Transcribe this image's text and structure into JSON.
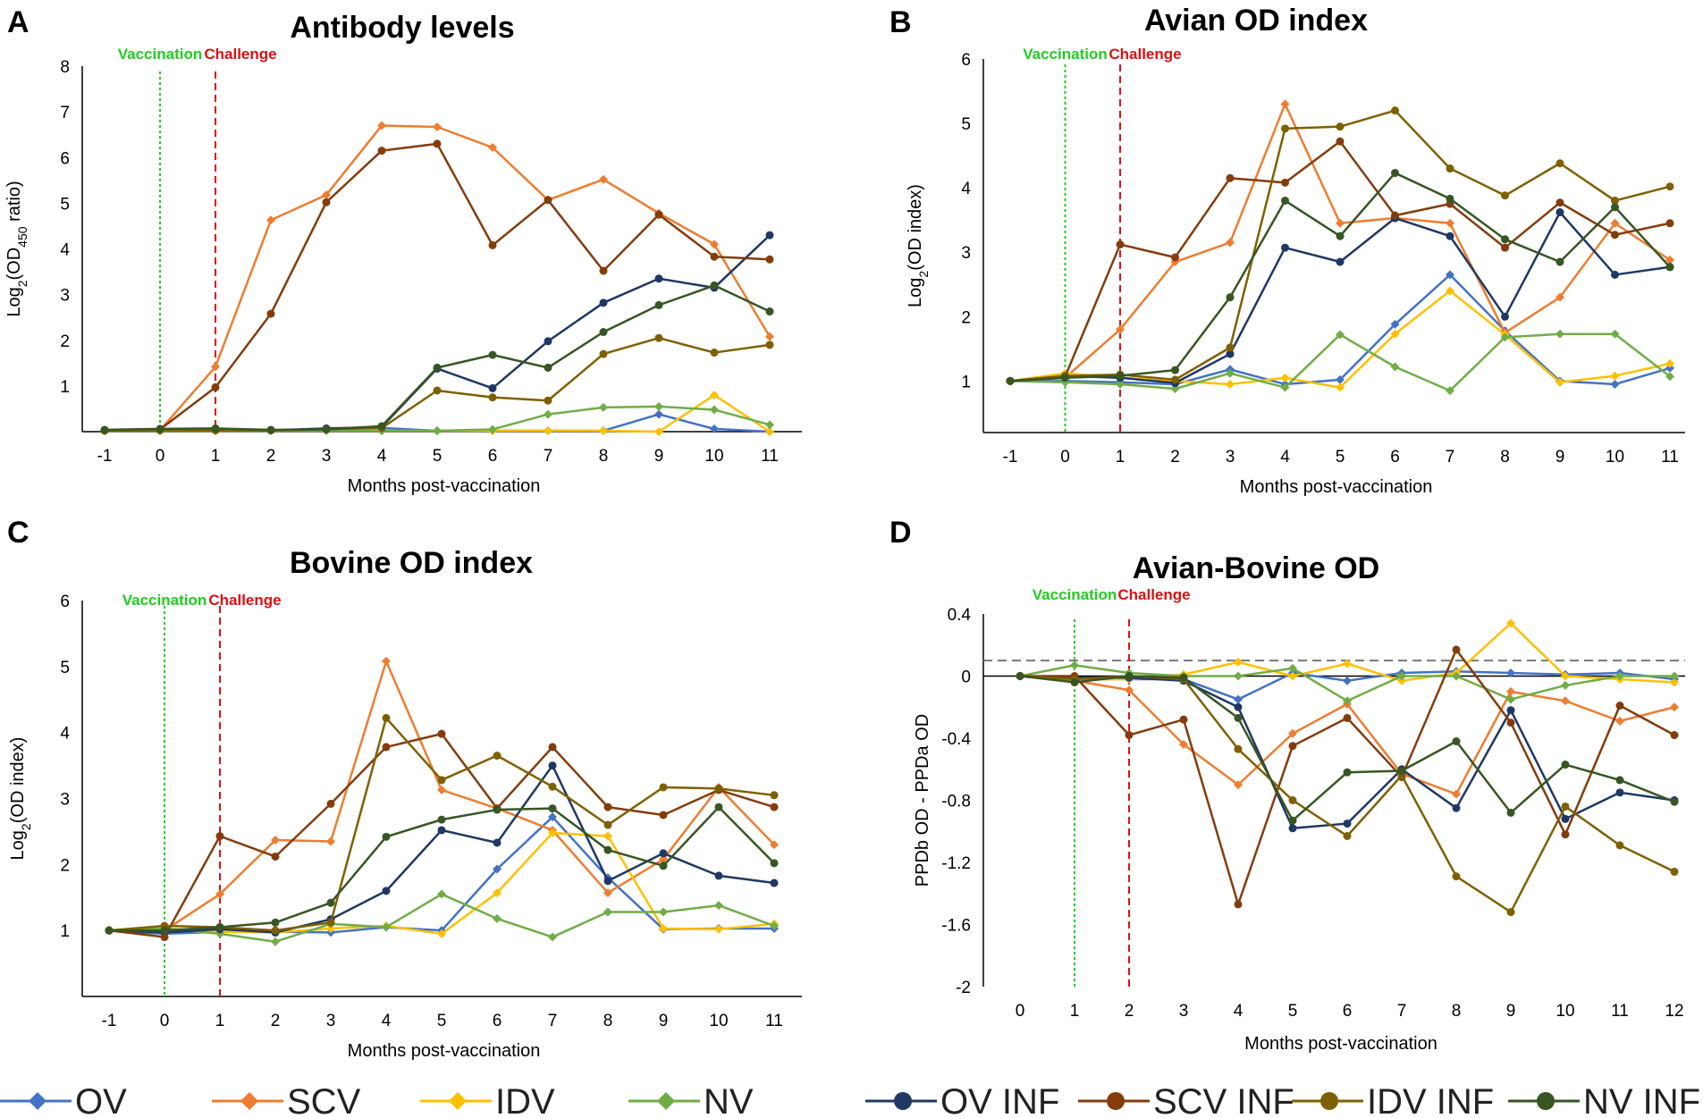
{
  "colors": {
    "OV": "#4472C4",
    "SCV": "#ED7D31",
    "IDV": "#FFC000",
    "NV": "#70AD47",
    "OV INF": "#1F3864",
    "SCV INF": "#843C0C",
    "IDV INF": "#7F6000",
    "NV INF": "#375623",
    "vaccination": "#22CC22",
    "challenge": "#DD1111",
    "threshold": "#777777"
  },
  "legend": {
    "items": [
      {
        "name": "OV",
        "marker": "diamond"
      },
      {
        "name": "SCV",
        "marker": "diamond"
      },
      {
        "name": "IDV",
        "marker": "diamond"
      },
      {
        "name": "NV",
        "marker": "diamond"
      },
      {
        "name": "OV INF",
        "marker": "circle"
      },
      {
        "name": "SCV INF",
        "marker": "circle"
      },
      {
        "name": "IDV INF",
        "marker": "circle"
      },
      {
        "name": "NV INF",
        "marker": "circle"
      }
    ]
  },
  "chart_data": [
    {
      "panel": "A",
      "type": "line",
      "title": "Antibody levels",
      "xlabel": "Months post-vaccination",
      "ylabel": "Log2(OD450 ratio)",
      "x": [
        -1,
        0,
        1,
        2,
        3,
        4,
        5,
        6,
        7,
        8,
        9,
        10,
        11
      ],
      "ylim": [
        0,
        8
      ],
      "yticks": [
        1,
        2,
        3,
        4,
        5,
        6,
        7,
        8
      ],
      "ytick_labels": [
        "1",
        "2",
        "3",
        "4",
        "5",
        "6",
        "7",
        "8"
      ],
      "vaccination_at": 0,
      "challenge_at": 1,
      "vaccination_label": "Vaccination",
      "challenge_label": "Challenge",
      "series": [
        {
          "name": "OV",
          "values": [
            0.02,
            0.03,
            0.02,
            0.02,
            0.05,
            0.08,
            0.02,
            0.02,
            0.02,
            0.02,
            0.38,
            0.06,
            0.0
          ]
        },
        {
          "name": "SCV",
          "values": [
            0.02,
            0.03,
            1.42,
            4.63,
            5.18,
            6.7,
            6.67,
            6.22,
            5.07,
            5.52,
            4.78,
            4.1,
            2.08
          ]
        },
        {
          "name": "IDV",
          "values": [
            0.02,
            0.02,
            0.02,
            0.02,
            0.02,
            0.02,
            0.02,
            0.02,
            0.02,
            0.02,
            0.0,
            0.8,
            0.0
          ]
        },
        {
          "name": "NV",
          "values": [
            0.02,
            0.02,
            0.02,
            0.02,
            0.02,
            0.02,
            0.02,
            0.05,
            0.38,
            0.53,
            0.55,
            0.48,
            0.15
          ]
        },
        {
          "name": "OV INF",
          "values": [
            0.03,
            0.04,
            0.04,
            0.03,
            0.07,
            0.1,
            1.38,
            0.95,
            1.98,
            2.82,
            3.35,
            3.15,
            4.3
          ]
        },
        {
          "name": "SCV INF",
          "values": [
            0.03,
            0.05,
            0.97,
            2.58,
            5.02,
            6.15,
            6.3,
            4.08,
            5.07,
            3.52,
            4.75,
            3.83,
            3.77
          ]
        },
        {
          "name": "IDV INF",
          "values": [
            0.02,
            0.03,
            0.03,
            0.03,
            0.05,
            0.08,
            0.9,
            0.75,
            0.68,
            1.7,
            2.05,
            1.73,
            1.9
          ]
        },
        {
          "name": "NV INF",
          "values": [
            0.04,
            0.06,
            0.07,
            0.04,
            0.05,
            0.12,
            1.4,
            1.68,
            1.4,
            2.18,
            2.77,
            3.2,
            2.63
          ]
        }
      ]
    },
    {
      "panel": "B",
      "type": "line",
      "title": "Avian OD index",
      "xlabel": "Months post-vaccination",
      "ylabel": "Log2(OD index)",
      "x": [
        -1,
        0,
        1,
        2,
        3,
        4,
        5,
        6,
        7,
        8,
        9,
        10,
        11
      ],
      "ylim": [
        0.2,
        6
      ],
      "yticks": [
        1,
        2,
        3,
        4,
        5,
        6
      ],
      "ytick_labels": [
        "1",
        "2",
        "3",
        "4",
        "5",
        "6"
      ],
      "vaccination_at": 0,
      "challenge_at": 1,
      "vaccination_label": "Vaccination",
      "challenge_label": "Challenge",
      "series": [
        {
          "name": "OV",
          "values": [
            1.0,
            1.0,
            0.98,
            0.95,
            1.18,
            0.95,
            1.02,
            1.88,
            2.65,
            1.78,
            1.0,
            0.95,
            1.2
          ]
        },
        {
          "name": "SCV",
          "values": [
            1.0,
            1.05,
            1.8,
            2.85,
            3.15,
            5.3,
            3.45,
            3.53,
            3.45,
            1.75,
            2.3,
            3.45,
            2.88
          ]
        },
        {
          "name": "IDV",
          "values": [
            1.0,
            1.12,
            1.05,
            1.0,
            0.95,
            1.05,
            0.9,
            1.73,
            2.4,
            1.72,
            0.98,
            1.08,
            1.27
          ]
        },
        {
          "name": "NV",
          "values": [
            1.0,
            0.98,
            0.95,
            0.88,
            1.12,
            0.9,
            1.72,
            1.22,
            0.85,
            1.68,
            1.73,
            1.73,
            1.07
          ]
        },
        {
          "name": "OV INF",
          "values": [
            1.0,
            1.08,
            1.05,
            0.97,
            1.42,
            3.07,
            2.85,
            3.53,
            3.25,
            2.0,
            3.62,
            2.65,
            2.77
          ]
        },
        {
          "name": "SCV INF",
          "values": [
            1.0,
            1.07,
            3.12,
            2.92,
            4.15,
            4.08,
            4.72,
            3.57,
            3.75,
            3.07,
            3.77,
            3.27,
            3.45
          ]
        },
        {
          "name": "IDV INF",
          "values": [
            1.0,
            1.08,
            1.1,
            1.02,
            1.52,
            4.92,
            4.95,
            5.2,
            4.3,
            3.88,
            4.38,
            3.8,
            4.02
          ]
        },
        {
          "name": "NV INF",
          "values": [
            1.0,
            1.05,
            1.08,
            1.17,
            2.3,
            3.8,
            3.25,
            4.23,
            3.83,
            3.2,
            2.85,
            3.7,
            2.77
          ]
        }
      ]
    },
    {
      "panel": "C",
      "type": "line",
      "title": "Bovine OD index",
      "xlabel": "Months post-vaccination",
      "ylabel": "Log2(OD index)",
      "x": [
        -1,
        0,
        1,
        2,
        3,
        4,
        5,
        6,
        7,
        8,
        9,
        10,
        11
      ],
      "ylim": [
        0,
        6
      ],
      "yticks": [
        1,
        2,
        3,
        4,
        5,
        6
      ],
      "ytick_labels": [
        "1",
        "2",
        "3",
        "4",
        "5",
        "6"
      ],
      "vaccination_at": 0,
      "challenge_at": 1,
      "vaccination_label": "Vaccination",
      "challenge_label": "Challenge",
      "series": [
        {
          "name": "OV",
          "values": [
            1.0,
            0.95,
            0.98,
            0.98,
            0.97,
            1.05,
            1.0,
            1.93,
            2.72,
            1.8,
            1.02,
            1.03,
            1.03
          ]
        },
        {
          "name": "SCV",
          "values": [
            1.0,
            1.0,
            1.55,
            2.37,
            2.35,
            5.08,
            3.13,
            2.85,
            2.52,
            1.57,
            2.08,
            3.17,
            2.3
          ]
        },
        {
          "name": "IDV",
          "values": [
            1.0,
            1.03,
            0.98,
            0.97,
            1.03,
            1.07,
            0.95,
            1.57,
            2.48,
            2.43,
            1.03,
            1.02,
            1.1
          ]
        },
        {
          "name": "NV",
          "values": [
            1.0,
            1.03,
            0.95,
            0.83,
            1.1,
            1.05,
            1.55,
            1.18,
            0.9,
            1.28,
            1.28,
            1.38,
            1.07
          ]
        },
        {
          "name": "OV INF",
          "values": [
            1.0,
            0.97,
            1.02,
            0.97,
            1.17,
            1.6,
            2.52,
            2.33,
            3.5,
            1.75,
            2.17,
            1.83,
            1.72
          ]
        },
        {
          "name": "SCV INF",
          "values": [
            1.0,
            0.9,
            2.43,
            2.12,
            2.92,
            3.78,
            3.98,
            2.85,
            3.78,
            2.87,
            2.75,
            3.13,
            2.87
          ]
        },
        {
          "name": "IDV INF",
          "values": [
            1.0,
            1.07,
            1.05,
            1.0,
            1.12,
            4.22,
            3.28,
            3.65,
            3.18,
            2.6,
            3.17,
            3.15,
            3.05
          ]
        },
        {
          "name": "NV INF",
          "values": [
            1.0,
            1.0,
            1.05,
            1.12,
            1.42,
            2.42,
            2.68,
            2.83,
            2.85,
            2.22,
            1.98,
            2.87,
            2.02
          ]
        }
      ]
    },
    {
      "panel": "D",
      "type": "line",
      "title": "Avian-Bovine OD",
      "xlabel": "Months post-vaccination",
      "ylabel": "PPDb OD - PPDa OD",
      "x": [
        0,
        1,
        2,
        3,
        4,
        5,
        6,
        7,
        8,
        9,
        10,
        11,
        12
      ],
      "ylim": [
        -2,
        0.4
      ],
      "yticks": [
        0.4,
        0,
        -0.4,
        -0.8,
        -1.2,
        -1.6,
        -2
      ],
      "ytick_labels": [
        "0.4",
        "0",
        "-0.4",
        "-0.8",
        "-1.2",
        "-1.6",
        "-2"
      ],
      "threshold": 0.1,
      "vaccination_at": 1,
      "challenge_at": 2,
      "vaccination_label": "Vaccination",
      "challenge_label": "Challenge",
      "series": [
        {
          "name": "OV",
          "values": [
            0.0,
            -0.02,
            -0.02,
            -0.02,
            -0.15,
            0.02,
            -0.03,
            0.02,
            0.03,
            0.02,
            0.01,
            0.02,
            -0.02
          ]
        },
        {
          "name": "SCV",
          "values": [
            0.0,
            -0.03,
            -0.09,
            -0.44,
            -0.7,
            -0.37,
            -0.18,
            -0.63,
            -0.76,
            -0.1,
            -0.16,
            -0.29,
            -0.2
          ]
        },
        {
          "name": "IDV",
          "values": [
            0.0,
            -0.02,
            -0.02,
            0.01,
            0.09,
            0.0,
            0.08,
            -0.03,
            0.02,
            0.34,
            0.0,
            -0.02,
            -0.04
          ]
        },
        {
          "name": "NV",
          "values": [
            0.0,
            0.07,
            0.02,
            0.0,
            0.0,
            0.05,
            -0.16,
            0.0,
            0.0,
            -0.15,
            -0.06,
            0.0,
            0.0
          ]
        },
        {
          "name": "OV INF",
          "values": [
            0.0,
            -0.01,
            -0.01,
            -0.03,
            -0.2,
            -0.98,
            -0.95,
            -0.6,
            -0.85,
            -0.22,
            -0.92,
            -0.75,
            -0.8
          ]
        },
        {
          "name": "SCV INF",
          "values": [
            0.0,
            0.0,
            -0.38,
            -0.28,
            -1.47,
            -0.45,
            -0.27,
            -0.65,
            0.17,
            -0.3,
            -1.02,
            -0.19,
            -0.38
          ]
        },
        {
          "name": "IDV INF",
          "values": [
            0.0,
            -0.02,
            0.0,
            -0.02,
            -0.47,
            -0.8,
            -1.03,
            -0.64,
            -1.29,
            -1.52,
            -0.84,
            -1.09,
            -1.26
          ]
        },
        {
          "name": "NV INF",
          "values": [
            0.0,
            -0.04,
            0.0,
            -0.01,
            -0.27,
            -0.93,
            -0.62,
            -0.61,
            -0.42,
            -0.88,
            -0.57,
            -0.67,
            -0.81
          ]
        }
      ]
    }
  ]
}
